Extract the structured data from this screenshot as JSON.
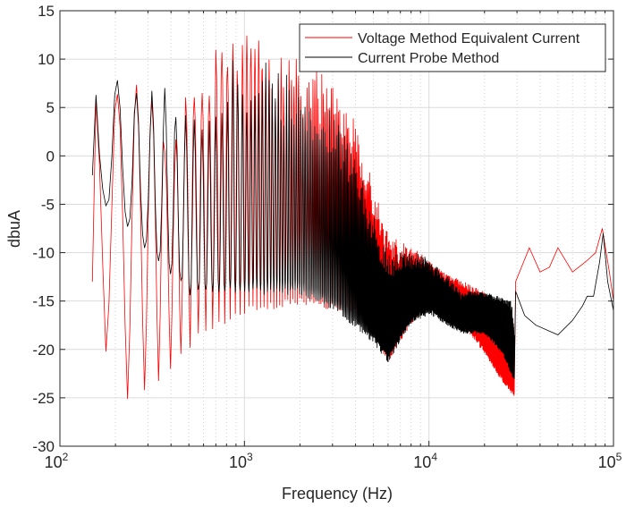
{
  "chart_data": {
    "type": "line",
    "title": "",
    "xlabel": "Frequency (Hz)",
    "ylabel": "dbuA",
    "xscale": "log",
    "xlim": [
      100,
      100000
    ],
    "ylim": [
      -30,
      15
    ],
    "xticks": [
      {
        "base": "10",
        "exp": "2",
        "value": 100
      },
      {
        "base": "10",
        "exp": "3",
        "value": 1000
      },
      {
        "base": "10",
        "exp": "4",
        "value": 10000
      },
      {
        "base": "10",
        "exp": "5",
        "value": 100000
      }
    ],
    "yticks": [
      15,
      10,
      5,
      0,
      -5,
      -10,
      -15,
      -20,
      -25,
      -30
    ],
    "grid": true,
    "legend_position": "top-right",
    "oscillation_period_hz": 55,
    "series": [
      {
        "name": "Voltage Method Equivalent Current",
        "color": "#ff0000",
        "start": [
          150,
          -13
        ],
        "oscillating_until_hz": 29000,
        "upper_envelope": [
          [
            155,
            8
          ],
          [
            200,
            8.3
          ],
          [
            260,
            10
          ],
          [
            400,
            6
          ],
          [
            500,
            9
          ],
          [
            700,
            11
          ],
          [
            1000,
            13.3
          ],
          [
            1300,
            12.6
          ],
          [
            2000,
            10
          ],
          [
            3000,
            8
          ],
          [
            4000,
            4
          ],
          [
            5000,
            -3
          ],
          [
            6000,
            -8
          ],
          [
            9000,
            -10
          ],
          [
            12000,
            -12
          ],
          [
            20000,
            -14
          ],
          [
            25000,
            -18
          ],
          [
            29000,
            -22
          ]
        ],
        "lower_envelope": [
          [
            155,
            -10
          ],
          [
            190,
            -25
          ],
          [
            250,
            -25.5
          ],
          [
            400,
            -22
          ],
          [
            600,
            -18
          ],
          [
            1000,
            -16
          ],
          [
            2000,
            -15
          ],
          [
            3000,
            -15.5
          ],
          [
            4000,
            -16
          ],
          [
            5000,
            -18
          ],
          [
            6000,
            -21
          ],
          [
            8000,
            -17
          ],
          [
            10000,
            -15
          ],
          [
            15000,
            -17
          ],
          [
            20000,
            -20
          ],
          [
            25000,
            -23
          ],
          [
            29000,
            -24.5
          ]
        ],
        "smooth_tail": [
          [
            29500,
            -13
          ],
          [
            35000,
            -9.5
          ],
          [
            40000,
            -12
          ],
          [
            45000,
            -11.5
          ],
          [
            50000,
            -9.5
          ],
          [
            60000,
            -12
          ],
          [
            70000,
            -11
          ],
          [
            75000,
            -10.5
          ],
          [
            80000,
            -10
          ],
          [
            87000,
            -7.5
          ],
          [
            95000,
            -12
          ],
          [
            100000,
            -15
          ],
          [
            105000,
            -19.5
          ]
        ]
      },
      {
        "name": "Current Probe Method",
        "color": "#000000",
        "start": [
          150,
          -2
        ],
        "oscillating_until_hz": 29000,
        "upper_envelope": [
          [
            155,
            9
          ],
          [
            260,
            9.8
          ],
          [
            500,
            7
          ],
          [
            1000,
            10.7
          ],
          [
            2000,
            8
          ],
          [
            3000,
            5
          ],
          [
            4000,
            0
          ],
          [
            5000,
            -6
          ],
          [
            6000,
            -10
          ],
          [
            9000,
            -10
          ],
          [
            12000,
            -12
          ],
          [
            15000,
            -14
          ],
          [
            20000,
            -14
          ],
          [
            28000,
            -15
          ],
          [
            29000,
            -18
          ]
        ],
        "lower_envelope": [
          [
            155,
            -4
          ],
          [
            200,
            -5.5
          ],
          [
            300,
            -10
          ],
          [
            500,
            -14
          ],
          [
            1000,
            -14
          ],
          [
            2000,
            -14
          ],
          [
            3000,
            -15.5
          ],
          [
            5000,
            -19
          ],
          [
            6000,
            -21
          ],
          [
            8000,
            -17
          ],
          [
            10000,
            -16
          ],
          [
            15000,
            -18
          ],
          [
            20000,
            -18
          ],
          [
            25000,
            -20
          ],
          [
            29000,
            -23
          ]
        ],
        "smooth_tail": [
          [
            29500,
            -14
          ],
          [
            33000,
            -16.5
          ],
          [
            38000,
            -17.5
          ],
          [
            50000,
            -18.5
          ],
          [
            60000,
            -17
          ],
          [
            68000,
            -15.5
          ],
          [
            72000,
            -14.5
          ],
          [
            78000,
            -14.5
          ],
          [
            84000,
            -11
          ],
          [
            88000,
            -8
          ],
          [
            93000,
            -13
          ],
          [
            100000,
            -16
          ],
          [
            105000,
            -17.5
          ]
        ]
      }
    ]
  }
}
